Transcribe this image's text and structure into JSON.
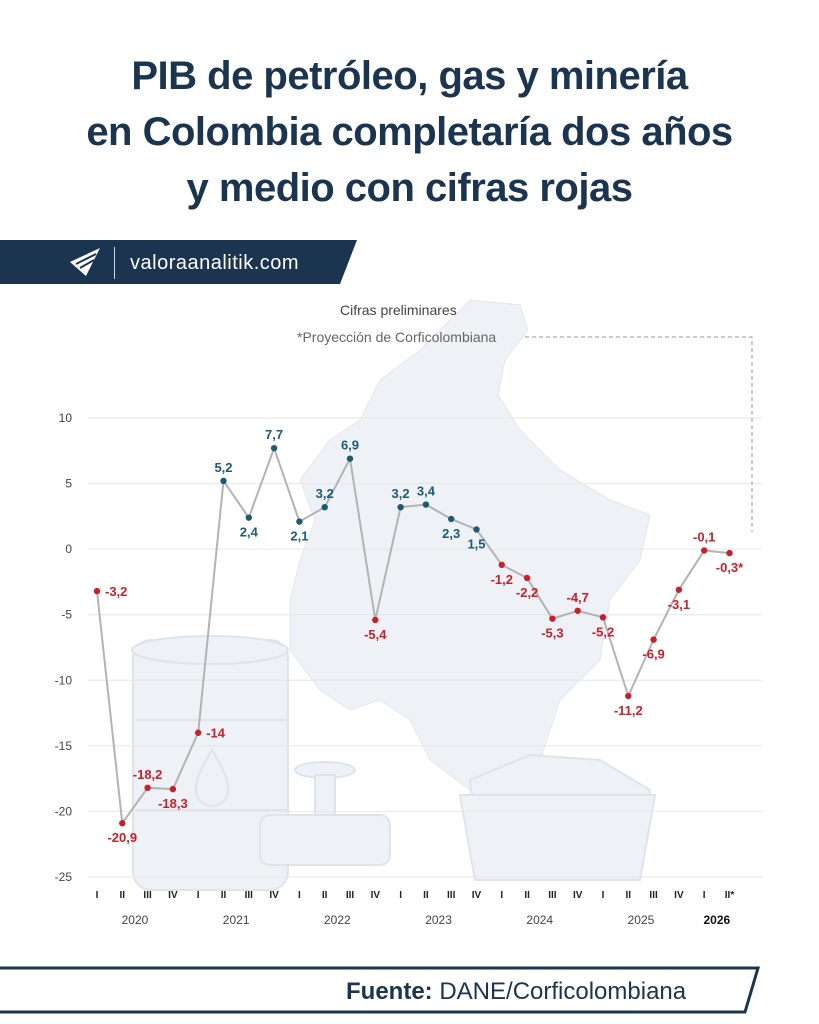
{
  "header": {
    "title_lines": [
      "PIB de petróleo, gas y minería",
      "en Colombia completaría dos años",
      "y medio con cifras rojas"
    ],
    "brand": "valoraanalitik.com"
  },
  "notes": {
    "preliminary": "Cifras preliminares",
    "projection": "*Proyección de Corficolombiana"
  },
  "footer": {
    "source_label": "Fuente:",
    "source_value": "DANE/Corficolombiana"
  },
  "colors": {
    "navy": "#1b3450",
    "positive": "#1f5a73",
    "negative": "#c8202a",
    "line": "#b3b3b3",
    "grid": "#e6e6e6"
  },
  "chart_data": {
    "type": "line",
    "x": [
      "I",
      "II",
      "III",
      "IV",
      "I",
      "II",
      "III",
      "IV",
      "I",
      "II",
      "III",
      "IV",
      "I",
      "II",
      "III",
      "IV",
      "I",
      "II",
      "III",
      "IV",
      "I",
      "II",
      "III",
      "IV",
      "I",
      "II*"
    ],
    "years": [
      {
        "label": "2020",
        "bold": false
      },
      {
        "label": "2021",
        "bold": false
      },
      {
        "label": "2022",
        "bold": false
      },
      {
        "label": "2023",
        "bold": false
      },
      {
        "label": "2024",
        "bold": false
      },
      {
        "label": "2025",
        "bold": false
      },
      {
        "label": "2026",
        "bold": true
      }
    ],
    "values": [
      -3.2,
      -20.9,
      -18.2,
      -18.3,
      -14,
      5.2,
      2.4,
      7.7,
      2.1,
      3.2,
      6.9,
      -5.4,
      3.2,
      3.4,
      2.3,
      1.5,
      -1.2,
      -2.2,
      -5.3,
      -4.7,
      -5.2,
      -11.2,
      -6.9,
      -3.1,
      -0.1,
      -0.3
    ],
    "data_labels": [
      "-3,2",
      "-20,9",
      "-18,2",
      "-18,3",
      "-14",
      "5,2",
      "2,4",
      "7,7",
      "2,1",
      "3,2",
      "6,9",
      "-5,4",
      "3,2",
      "3,4",
      "2,3",
      "1,5",
      "-1,2",
      "-2,2",
      "-5,3",
      "-4,7",
      "-5,2",
      "-11,2",
      "-6,9",
      "-3,1",
      "-0,1",
      "-0,3*"
    ],
    "yticks": [
      "10",
      "5",
      "0",
      "-5",
      "-10",
      "-15",
      "-20",
      "-25"
    ],
    "ylim": [
      -25,
      10
    ],
    "grid": true
  }
}
